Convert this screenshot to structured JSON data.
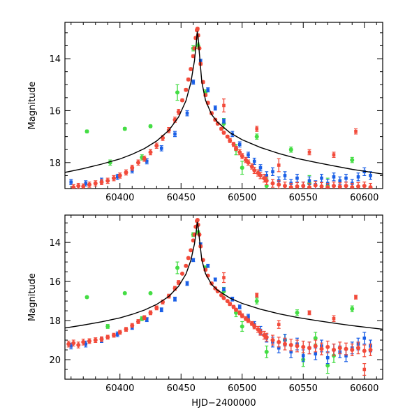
{
  "chart_data": [
    {
      "type": "scatter",
      "xlabel": "",
      "ylabel": "Magnitude",
      "xlim": [
        60355,
        60615
      ],
      "ylim": [
        19,
        12.6
      ],
      "x_ticks": [
        60400,
        60450,
        60500,
        60550,
        60600
      ],
      "y_ticks": [
        14,
        16,
        18
      ],
      "colors": {
        "green": "#44dd44",
        "blue": "#1a5fe6",
        "red": "#f24a3a",
        "model": "#000000"
      },
      "peak": {
        "t0": 60463.5,
        "mag": 12.8
      },
      "model": {
        "x": [
          60355,
          60370,
          60385,
          60400,
          60410,
          60420,
          60430,
          60440,
          60448,
          60454,
          60458,
          60461,
          60462.5,
          60463.3,
          60464,
          60465,
          60467,
          60470,
          60475,
          60480,
          60490,
          60500,
          60515,
          60530,
          60545,
          60560,
          60575,
          60590,
          60605,
          60615
        ],
        "y": [
          18.38,
          18.23,
          18.06,
          17.86,
          17.68,
          17.46,
          17.17,
          16.76,
          16.24,
          15.62,
          14.92,
          14.07,
          13.4,
          12.95,
          13.2,
          13.8,
          14.9,
          15.6,
          16.15,
          16.45,
          16.85,
          17.12,
          17.42,
          17.65,
          17.84,
          17.99,
          18.13,
          18.26,
          18.37,
          18.44
        ]
      },
      "series_red": {
        "x": [
          60362,
          60366,
          60370,
          60375,
          60380,
          60385,
          60390,
          60395,
          60400,
          60405,
          60410,
          60415,
          60420,
          60425,
          60430,
          60435,
          60440,
          60445,
          60448,
          60451,
          60454,
          60456,
          60458,
          60460,
          60461,
          60462,
          60463,
          60463.5,
          60464,
          60465,
          60466,
          60468,
          60470,
          60472,
          60475,
          60478,
          60480,
          60483,
          60485,
          60488,
          60490,
          60493,
          60495,
          60498,
          60500,
          60503,
          60505,
          60508,
          60510,
          60513,
          60515,
          60518,
          60520,
          60525,
          60530,
          60535,
          60540,
          60545,
          60550,
          60555,
          60560,
          60565,
          60570,
          60575,
          60580,
          60585,
          60590,
          60595,
          60600,
          60605
        ],
        "y": [
          18.95,
          18.9,
          18.92,
          18.85,
          18.8,
          18.75,
          18.7,
          18.6,
          18.5,
          18.38,
          18.2,
          18.0,
          17.85,
          17.6,
          17.35,
          17.05,
          16.75,
          16.35,
          16.05,
          15.6,
          15.2,
          14.8,
          14.4,
          13.9,
          13.6,
          13.2,
          12.9,
          12.85,
          13.1,
          13.6,
          14.2,
          14.9,
          15.4,
          15.7,
          16.1,
          16.35,
          16.5,
          16.7,
          16.85,
          17.0,
          17.15,
          17.3,
          17.45,
          17.6,
          17.75,
          17.9,
          18.0,
          18.15,
          18.3,
          18.4,
          18.5,
          18.6,
          18.7,
          18.8,
          18.85,
          18.9,
          18.95,
          18.92,
          18.9,
          18.95,
          18.88,
          18.92,
          18.95,
          18.9,
          18.93,
          18.9,
          18.95,
          18.92,
          18.9,
          18.95
        ],
        "err": [
          0.1,
          0.1,
          0.1,
          0.1,
          0.1,
          0.1,
          0.1,
          0.1,
          0.1,
          0.1,
          0.1,
          0.1,
          0.1,
          0.1,
          0.1,
          0.1,
          0.1,
          0.1,
          0.1,
          0.05,
          0.05,
          0.05,
          0.05,
          0.05,
          0.05,
          0.05,
          0.05,
          0.05,
          0.05,
          0.05,
          0.05,
          0.05,
          0.05,
          0.05,
          0.05,
          0.05,
          0.05,
          0.05,
          0.05,
          0.05,
          0.08,
          0.08,
          0.08,
          0.1,
          0.1,
          0.1,
          0.1,
          0.1,
          0.12,
          0.12,
          0.12,
          0.15,
          0.15,
          0.15,
          0.15,
          0.15,
          0.15,
          0.15,
          0.15,
          0.15,
          0.15,
          0.15,
          0.15,
          0.15,
          0.15,
          0.15,
          0.15,
          0.15,
          0.15,
          0.15
        ]
      },
      "series_blue": {
        "x": [
          60360,
          60372,
          60385,
          60398,
          60410,
          60422,
          60434,
          60445,
          60455,
          60460,
          60466,
          60472,
          60478,
          60485,
          60492,
          60498,
          60505,
          60510,
          60515,
          60520,
          60525,
          60530,
          60535,
          60540,
          60545,
          60550,
          60555,
          60560,
          60565,
          60570,
          60575,
          60580,
          60585,
          60590,
          60595,
          60600,
          60605
        ],
        "y": [
          18.75,
          18.8,
          18.7,
          18.55,
          18.3,
          17.95,
          17.45,
          16.9,
          16.1,
          14.9,
          14.1,
          15.2,
          15.9,
          16.4,
          16.9,
          17.3,
          17.7,
          17.95,
          18.2,
          18.5,
          18.35,
          18.7,
          18.5,
          18.8,
          18.6,
          18.9,
          18.7,
          18.85,
          18.6,
          18.8,
          18.55,
          18.7,
          18.6,
          18.8,
          18.55,
          18.35,
          18.5
        ],
        "err": [
          0.1,
          0.1,
          0.1,
          0.1,
          0.1,
          0.1,
          0.1,
          0.1,
          0.1,
          0.08,
          0.08,
          0.08,
          0.08,
          0.08,
          0.1,
          0.1,
          0.1,
          0.12,
          0.12,
          0.15,
          0.15,
          0.15,
          0.15,
          0.15,
          0.15,
          0.15,
          0.15,
          0.15,
          0.15,
          0.15,
          0.15,
          0.15,
          0.15,
          0.15,
          0.15,
          0.15,
          0.15
        ]
      },
      "series_green": {
        "x": [
          60373,
          60392,
          60404,
          60418,
          60425,
          60447,
          60460,
          60464,
          60470,
          60485,
          60495,
          60500,
          60512,
          60520,
          60540,
          60555,
          60570,
          60590
        ],
        "y": [
          16.8,
          18.0,
          16.7,
          17.8,
          16.6,
          15.3,
          13.6,
          13.5,
          15.3,
          16.5,
          17.5,
          18.2,
          17.0,
          18.9,
          17.5,
          18.8,
          18.9,
          17.9
        ],
        "err": [
          0.05,
          0.1,
          0.05,
          0.1,
          0.05,
          0.3,
          0.1,
          0.1,
          0.1,
          0.2,
          0.2,
          0.25,
          0.1,
          0.3,
          0.1,
          0.3,
          0.3,
          0.1
        ]
      },
      "outliers_red": {
        "x": [
          60485,
          60512,
          60530,
          60555,
          60575,
          60593
        ],
        "y": [
          15.8,
          16.7,
          18.1,
          17.6,
          17.7,
          16.8
        ],
        "err": [
          0.25,
          0.1,
          0.25,
          0.1,
          0.1,
          0.1
        ]
      }
    },
    {
      "type": "scatter",
      "xlabel": "HJD−2400000",
      "ylabel": "Magnitude",
      "xlim": [
        60355,
        60615
      ],
      "ylim": [
        21,
        12.6
      ],
      "x_ticks": [
        60400,
        60450,
        60500,
        60550,
        60600
      ],
      "y_ticks": [
        14,
        16,
        18,
        20
      ],
      "colors": {
        "green": "#44dd44",
        "blue": "#1a5fe6",
        "red": "#f24a3a",
        "model": "#000000"
      },
      "model": {
        "x": [
          60355,
          60370,
          60385,
          60400,
          60410,
          60420,
          60430,
          60440,
          60448,
          60454,
          60458,
          60461,
          60462.5,
          60463.3,
          60464,
          60465,
          60467,
          60470,
          60475,
          60480,
          60490,
          60500,
          60515,
          60530,
          60545,
          60560,
          60575,
          60590,
          60605,
          60615
        ],
        "y": [
          18.38,
          18.23,
          18.06,
          17.86,
          17.68,
          17.46,
          17.17,
          16.76,
          16.24,
          15.62,
          14.92,
          14.07,
          13.4,
          12.95,
          13.2,
          13.8,
          14.9,
          15.6,
          16.15,
          16.45,
          16.85,
          17.12,
          17.42,
          17.65,
          17.84,
          17.99,
          18.13,
          18.26,
          18.37,
          18.44
        ]
      },
      "series_red": {
        "x": [
          60358,
          60362,
          60366,
          60370,
          60375,
          60380,
          60385,
          60390,
          60395,
          60400,
          60405,
          60410,
          60415,
          60420,
          60425,
          60430,
          60435,
          60440,
          60445,
          60448,
          60451,
          60454,
          60456,
          60458,
          60460,
          60461,
          60462,
          60463,
          60463.5,
          60464,
          60465,
          60466,
          60468,
          60470,
          60472,
          60475,
          60478,
          60480,
          60483,
          60485,
          60488,
          60490,
          60493,
          60495,
          60498,
          60500,
          60503,
          60505,
          60508,
          60510,
          60513,
          60515,
          60518,
          60520,
          60525,
          60530,
          60535,
          60540,
          60545,
          60550,
          60555,
          60560,
          60565,
          60570,
          60575,
          60580,
          60585,
          60590,
          60595,
          60600,
          60605
        ],
        "y": [
          19.2,
          19.15,
          19.25,
          19.1,
          19.05,
          19.0,
          18.95,
          18.85,
          18.75,
          18.6,
          18.45,
          18.25,
          18.05,
          17.85,
          17.6,
          17.35,
          17.05,
          16.75,
          16.35,
          16.05,
          15.6,
          15.2,
          14.8,
          14.4,
          13.9,
          13.6,
          13.2,
          12.9,
          12.85,
          13.1,
          13.6,
          14.2,
          14.9,
          15.4,
          15.7,
          16.1,
          16.35,
          16.5,
          16.7,
          16.85,
          17.0,
          17.15,
          17.3,
          17.45,
          17.6,
          17.75,
          17.9,
          18.0,
          18.15,
          18.3,
          18.45,
          18.6,
          18.75,
          18.85,
          19.0,
          19.1,
          19.2,
          19.25,
          19.3,
          19.35,
          19.4,
          19.3,
          19.45,
          19.35,
          19.5,
          19.4,
          19.45,
          19.5,
          19.4,
          19.55,
          19.5
        ],
        "err": [
          0.15,
          0.15,
          0.15,
          0.15,
          0.12,
          0.12,
          0.12,
          0.1,
          0.1,
          0.1,
          0.1,
          0.1,
          0.1,
          0.1,
          0.1,
          0.1,
          0.1,
          0.1,
          0.1,
          0.1,
          0.05,
          0.05,
          0.05,
          0.05,
          0.05,
          0.05,
          0.05,
          0.05,
          0.05,
          0.05,
          0.05,
          0.05,
          0.05,
          0.05,
          0.05,
          0.05,
          0.05,
          0.05,
          0.05,
          0.05,
          0.05,
          0.08,
          0.08,
          0.08,
          0.1,
          0.1,
          0.1,
          0.1,
          0.1,
          0.12,
          0.15,
          0.15,
          0.2,
          0.2,
          0.25,
          0.25,
          0.3,
          0.3,
          0.3,
          0.3,
          0.3,
          0.3,
          0.3,
          0.3,
          0.3,
          0.3,
          0.3,
          0.3,
          0.3,
          0.3,
          0.3
        ]
      },
      "series_blue": {
        "x": [
          60360,
          60372,
          60385,
          60398,
          60410,
          60422,
          60434,
          60445,
          60455,
          60460,
          60466,
          60472,
          60478,
          60485,
          60492,
          60498,
          60505,
          60510,
          60515,
          60520,
          60525,
          60530,
          60535,
          60540,
          60545,
          60550,
          60555,
          60560,
          60565,
          60570,
          60575,
          60580,
          60585,
          60590,
          60595,
          60600,
          60605
        ],
        "y": [
          19.3,
          19.2,
          19.0,
          18.7,
          18.35,
          17.95,
          17.45,
          16.9,
          16.1,
          14.9,
          14.1,
          15.2,
          15.9,
          16.4,
          16.9,
          17.3,
          17.8,
          18.2,
          18.5,
          18.9,
          19.1,
          19.4,
          19.0,
          19.6,
          19.2,
          19.8,
          19.4,
          19.7,
          19.3,
          19.9,
          19.5,
          19.6,
          19.8,
          19.4,
          19.2,
          18.9,
          19.3
        ],
        "err": [
          0.15,
          0.15,
          0.12,
          0.12,
          0.1,
          0.1,
          0.1,
          0.1,
          0.1,
          0.08,
          0.08,
          0.08,
          0.08,
          0.08,
          0.1,
          0.1,
          0.12,
          0.15,
          0.2,
          0.2,
          0.25,
          0.25,
          0.3,
          0.3,
          0.3,
          0.3,
          0.3,
          0.3,
          0.3,
          0.3,
          0.3,
          0.3,
          0.3,
          0.3,
          0.3,
          0.3,
          0.3
        ]
      },
      "series_green": {
        "x": [
          60373,
          60390,
          60404,
          60418,
          60425,
          60447,
          60460,
          60464,
          60470,
          60485,
          60495,
          60500,
          60512,
          60520,
          60535,
          60545,
          60550,
          60560,
          60570,
          60575,
          60590
        ],
        "y": [
          16.8,
          18.3,
          16.6,
          17.9,
          16.6,
          15.3,
          13.6,
          13.5,
          15.3,
          16.5,
          17.6,
          18.3,
          17.0,
          19.6,
          19.0,
          17.6,
          20.0,
          18.9,
          20.3,
          19.8,
          17.4
        ],
        "err": [
          0.05,
          0.1,
          0.05,
          0.1,
          0.05,
          0.3,
          0.1,
          0.1,
          0.1,
          0.2,
          0.2,
          0.25,
          0.15,
          0.3,
          0.3,
          0.15,
          0.35,
          0.3,
          0.4,
          0.35,
          0.15
        ]
      },
      "outliers_red": {
        "x": [
          60485,
          60512,
          60530,
          60555,
          60575,
          60593,
          60600
        ],
        "y": [
          15.8,
          16.7,
          18.2,
          17.6,
          17.9,
          16.8,
          20.5
        ],
        "err": [
          0.25,
          0.1,
          0.2,
          0.1,
          0.15,
          0.1,
          0.3
        ]
      }
    }
  ]
}
